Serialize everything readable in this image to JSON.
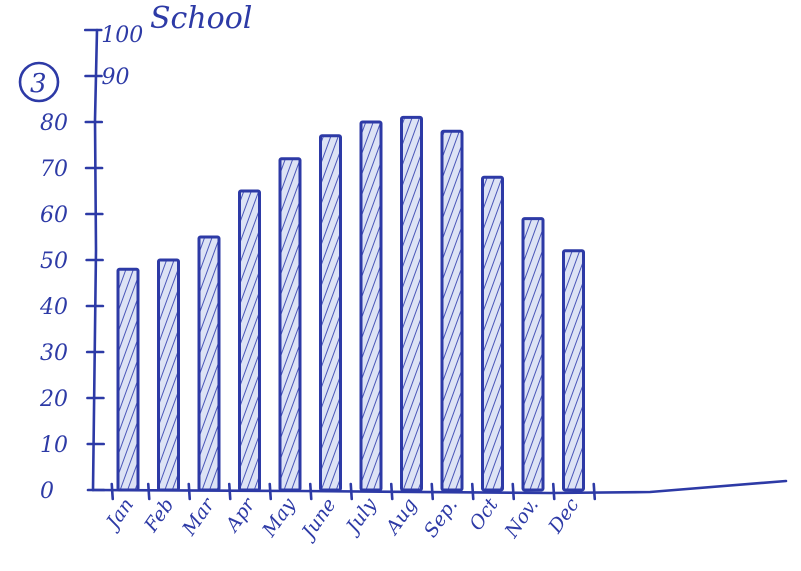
{
  "chart_data": {
    "type": "bar",
    "title": "School",
    "annotation": "3",
    "categories": [
      "Jan",
      "Feb",
      "Mar",
      "Apr",
      "May",
      "June",
      "July",
      "Aug",
      "Sep.",
      "Oct",
      "Nov.",
      "Dec"
    ],
    "values": [
      48,
      50,
      55,
      65,
      72,
      77,
      80,
      81,
      78,
      68,
      59,
      52
    ],
    "yticks": [
      "0",
      "10",
      "20",
      "30",
      "40",
      "50",
      "60",
      "70",
      "80",
      "90",
      "100"
    ],
    "ylim": [
      0,
      100
    ],
    "grid": false,
    "colors": {
      "ink": "#2d3aa6",
      "bar_fill": "#c9d2ee"
    }
  }
}
